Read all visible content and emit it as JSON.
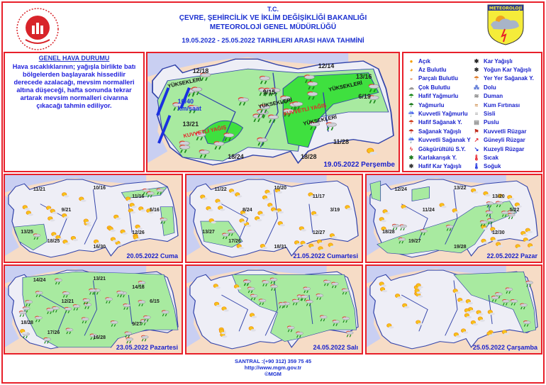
{
  "header": {
    "line1": "T.C.",
    "line2": "ÇEVRE, ŞEHİRCİLİK VE İKLİM DEĞİŞİKLİĞİ BAKANLIĞI",
    "line3": "METEOROLOJİ GENEL MÜDÜRLÜĞÜ",
    "line4": "19.05.2022 - 25.05.2022 TARIHLERI ARASI HAVA TAHMİNİ",
    "right_logo_text": "METEOROLOJİ"
  },
  "genel": {
    "title": "GENEL HAVA DURUMU",
    "text": "Hava sıcaklıklarının; yağışla birlikte batı bölgelerden başlayarak hissedilir derecede azalacağı, mevsim normalleri altına düşeceği, hafta sonunda tekrar artarak mevsim normalleri civarına çıkacağı tahmin ediliyor."
  },
  "legend": [
    {
      "icon": "sun-icon",
      "label": "Açık"
    },
    {
      "icon": "sun-small-cloud-icon",
      "label": "Az Bulutlu"
    },
    {
      "icon": "partly-cloudy-icon",
      "label": "Parçalı Bulutlu"
    },
    {
      "icon": "cloudy-icon",
      "label": "Çok Bulutlu"
    },
    {
      "icon": "light-rain-icon",
      "label": "Hafif Yağmurlu"
    },
    {
      "icon": "rain-icon",
      "label": "Yağmurlu"
    },
    {
      "icon": "heavy-rain-icon",
      "label": "Kuvvetli Yağmurlu"
    },
    {
      "icon": "light-shower-icon",
      "label": "Hafif Sağanak Y."
    },
    {
      "icon": "shower-icon",
      "label": "Sağanak Yağışlı"
    },
    {
      "icon": "heavy-shower-icon",
      "label": "Kuvvetli Sağanak Y"
    },
    {
      "icon": "thunderstorm-icon",
      "label": "Gökgürültülü S.Y."
    },
    {
      "icon": "sleet-icon",
      "label": "Karlakarışık Y."
    },
    {
      "icon": "light-snow-icon",
      "label": "Hafif Kar Yağışlı"
    },
    {
      "icon": "snow-icon",
      "label": "Kar Yağışlı"
    },
    {
      "icon": "heavy-snow-icon",
      "label": "Yoğun Kar Yağışlı"
    },
    {
      "icon": "scattered-shower-icon",
      "label": "Yer Yer Sağanak Y."
    },
    {
      "icon": "hail-icon",
      "label": "Dolu"
    },
    {
      "icon": "smoke-icon",
      "label": "Duman"
    },
    {
      "icon": "sandstorm-icon",
      "label": "Kum Fırtınası"
    },
    {
      "icon": "fog-icon",
      "label": "Sisli"
    },
    {
      "icon": "haze-icon",
      "label": "Puslu"
    },
    {
      "icon": "strong-wind-icon",
      "label": "Kuvvetli Rüzgar"
    },
    {
      "icon": "south-wind-arrow-icon",
      "label": "Güneyli Rüzgar"
    },
    {
      "icon": "north-wind-arrow-icon",
      "label": "Kuzeyli Rüzgar"
    },
    {
      "icon": "hot-thermometer-icon",
      "label": "Sıcak"
    },
    {
      "icon": "cold-thermometer-icon",
      "label": "Soğuk"
    }
  ],
  "main_map": {
    "date": "19.05.2022 Perşembe",
    "temps": [
      "12/18",
      "12/14",
      "13/16",
      "9/15",
      "6/19",
      "13/21",
      "18/24",
      "18/28",
      "11/28",
      "10/40 km/saat"
    ],
    "labels": [
      "YÜKSEKLERİ",
      "YÜKSEKLERİ",
      "YÜKSEKLERİ",
      "YÜKSEKLERİ",
      "KUVVETLİ YAĞIŞ",
      "KUVVETLİ YAĞIŞ"
    ]
  },
  "maps": [
    {
      "date": "20.05.2022 Cuma",
      "temps": [
        "11/21",
        "10/16",
        "11/16",
        "9/21",
        "5/16",
        "13/25",
        "18/25",
        "16/30",
        "12/26"
      ]
    },
    {
      "date": "21.05.2022 Cumartesi",
      "temps": [
        "11/22",
        "10/20",
        "11/17",
        "8/24",
        "3/19",
        "13/27",
        "17/26",
        "18/31",
        "12/27"
      ]
    },
    {
      "date": "22.05.2022 Pazar",
      "temps": [
        "12/24",
        "13/22",
        "13/20",
        "11/24",
        "5/22",
        "18/28",
        "19/27",
        "19/28",
        "12/30"
      ]
    },
    {
      "date": "23.05.2022 Pazartesi",
      "temps": [
        "14/24",
        "13/21",
        "14/18",
        "12/21",
        "6/15",
        "18/28",
        "17/26",
        "16/28",
        "9/27"
      ]
    },
    {
      "date": "24.05.2022 Salı",
      "temps": []
    },
    {
      "date": "25.05.2022 Çarşamba",
      "temps": []
    }
  ],
  "footer": {
    "phone": "SANTRAL :(+90 312) 359 75 45",
    "url": "http://www.mgm.gov.tr",
    "copy": "©MGM"
  },
  "colors": {
    "border": "#e8202a",
    "text_blue": "#1a2fd0",
    "sea": "#c9cff2",
    "land": "#f6dcc6",
    "turkey": "#eeeef6",
    "rain_zone": "#a8eaa0",
    "heavy_zone": "#3fe03f"
  }
}
